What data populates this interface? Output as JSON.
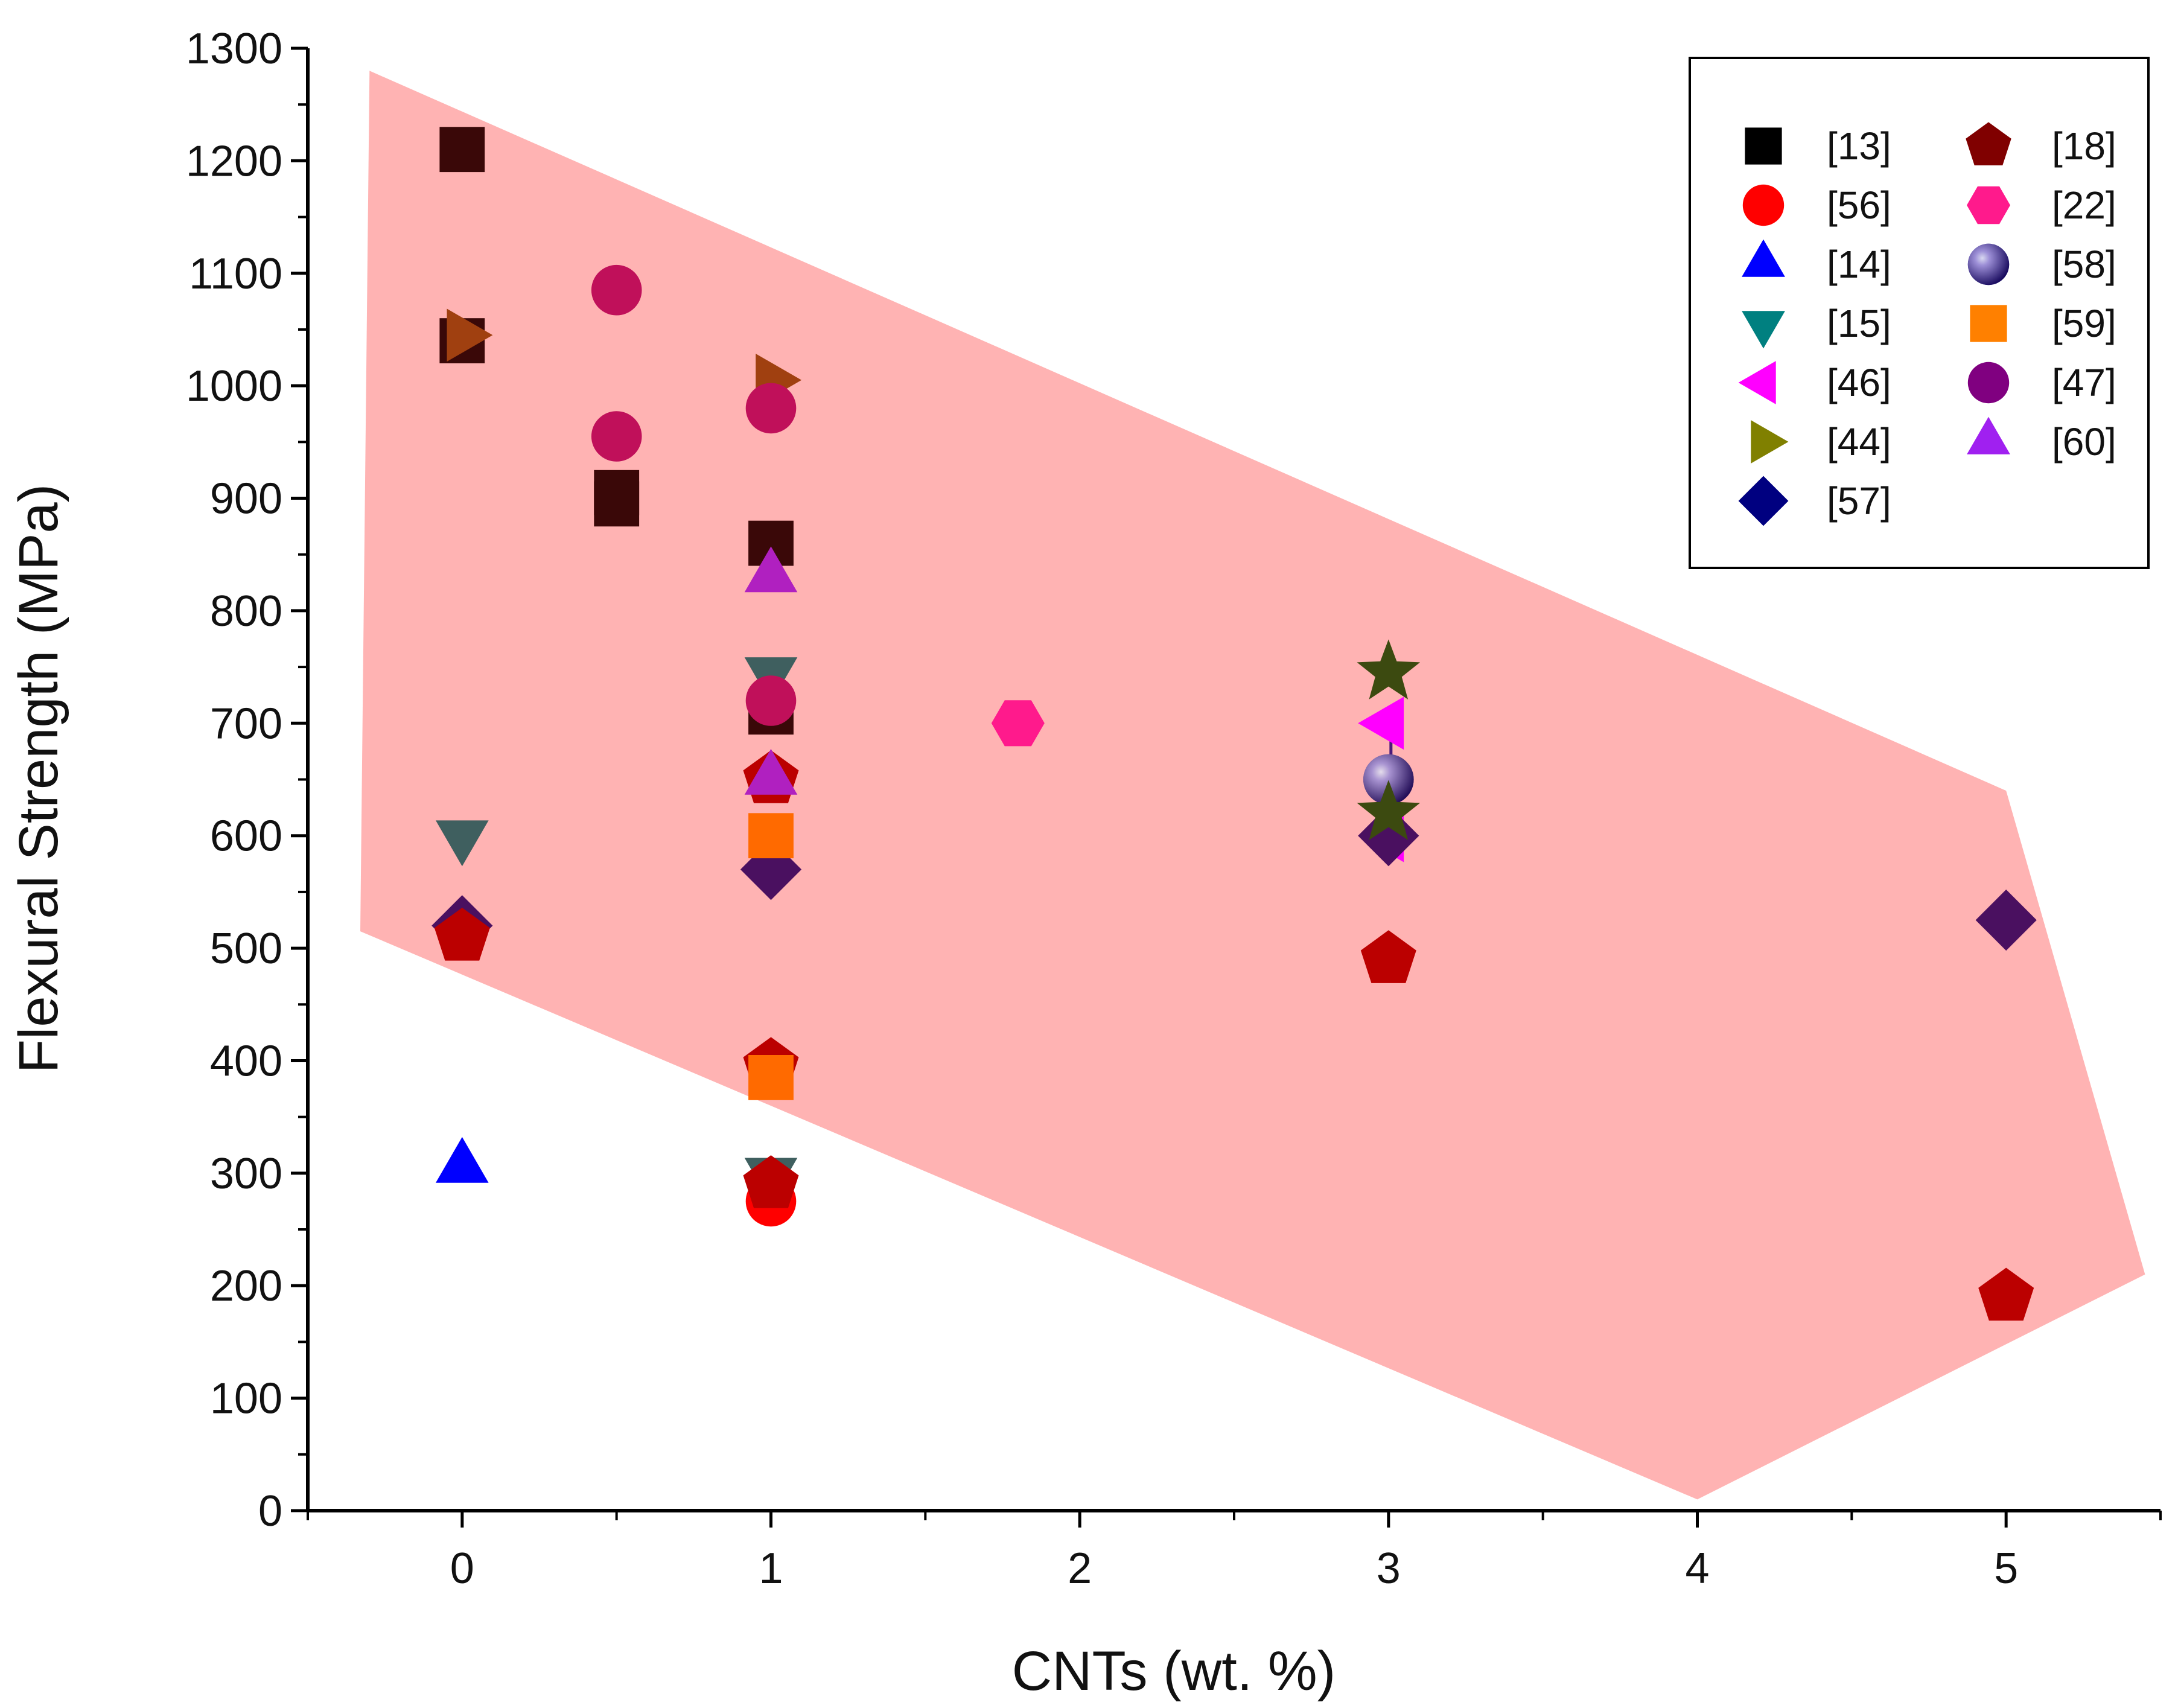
{
  "chart_data": {
    "type": "scatter",
    "title": "",
    "xlabel": "CNTs (wt. %)",
    "ylabel": "Flexural Strength (MPa)",
    "xlim": [
      -0.5,
      5.5
    ],
    "ylim": [
      0,
      1300
    ],
    "xticks": [
      0,
      1,
      2,
      3,
      4,
      5
    ],
    "xtick_labels": [
      "0",
      "1",
      "2",
      "3",
      "4",
      "5"
    ],
    "yticks": [
      0,
      100,
      200,
      300,
      400,
      500,
      600,
      700,
      800,
      900,
      1000,
      1100,
      1200,
      1300
    ],
    "ytick_labels": [
      "0",
      "100",
      "200",
      "300",
      "400",
      "500",
      "600",
      "700",
      "800",
      "900",
      "1000",
      "1100",
      "1200",
      "1300"
    ],
    "legend_position": "top-right",
    "shaded_region": {
      "color": "#ffb3b3",
      "vertices": [
        [
          -0.3,
          1280
        ],
        [
          5.0,
          640
        ],
        [
          5.45,
          210
        ],
        [
          4.0,
          10
        ],
        [
          -0.33,
          515
        ]
      ]
    },
    "series": [
      {
        "name": "[13]",
        "marker": "square",
        "color": "#3a0808",
        "points": [
          [
            0,
            1210
          ],
          [
            0,
            1040
          ],
          [
            0.5,
            905
          ],
          [
            0.5,
            895
          ],
          [
            1,
            860
          ],
          [
            1,
            710
          ]
        ]
      },
      {
        "name": "[56]",
        "marker": "circle",
        "color": "#ff0000",
        "points": [
          [
            1,
            275
          ]
        ]
      },
      {
        "name": "[14]",
        "marker": "triangle-up",
        "color": "#0000ff",
        "points": [
          [
            0,
            305
          ]
        ]
      },
      {
        "name": "[15]",
        "marker": "triangle-down",
        "color": "#3f5f5f",
        "points": [
          [
            0,
            600
          ],
          [
            1,
            745
          ],
          [
            1,
            300
          ]
        ]
      },
      {
        "name": "[46]",
        "marker": "triangle-left",
        "color": "#ff00ff",
        "points": [
          [
            3,
            700
          ],
          [
            3,
            600
          ]
        ]
      },
      {
        "name": "[44]",
        "marker": "triangle-right",
        "color": "#a04010",
        "points": [
          [
            0,
            1045
          ],
          [
            1,
            1005
          ]
        ]
      },
      {
        "name": "[57]",
        "marker": "diamond",
        "color": "#4a1060",
        "points": [
          [
            0,
            520
          ],
          [
            1,
            570
          ],
          [
            3,
            600
          ],
          [
            5,
            525
          ]
        ]
      },
      {
        "name": "[18]",
        "marker": "pentagon",
        "color": "#bb0000",
        "points": [
          [
            0,
            510
          ],
          [
            1,
            650
          ],
          [
            1,
            395
          ],
          [
            1,
            290
          ],
          [
            3,
            490
          ],
          [
            5,
            190
          ]
        ]
      },
      {
        "name": "[22]",
        "marker": "hexagon",
        "color": "#ff1a8c",
        "points": [
          [
            1.8,
            700
          ]
        ]
      },
      {
        "name": "[58]",
        "marker": "sphere",
        "color": "#4b1a7a",
        "points": [
          [
            3,
            650
          ]
        ]
      },
      {
        "name": "[59]",
        "marker": "square",
        "color": "#ff6a00",
        "points": [
          [
            1,
            600
          ],
          [
            1,
            385
          ]
        ]
      },
      {
        "name": "[47]",
        "marker": "circle",
        "color": "#c0105a",
        "points": [
          [
            0.5,
            1085
          ],
          [
            0.5,
            955
          ],
          [
            1,
            980
          ],
          [
            1,
            720
          ]
        ]
      },
      {
        "name": "[60]",
        "marker": "triangle-up",
        "color": "#b020c0",
        "points": [
          [
            1,
            830
          ],
          [
            1,
            650
          ]
        ]
      },
      {
        "name": "",
        "marker": "star",
        "color": "#3c4a10",
        "points": [
          [
            3,
            745
          ],
          [
            3,
            620
          ]
        ]
      }
    ],
    "legend": [
      {
        "label": "[13]",
        "marker": "square",
        "color": "#000000"
      },
      {
        "label": "[56]",
        "marker": "circle",
        "color": "#ff0000"
      },
      {
        "label": "[14]",
        "marker": "triangle-up",
        "color": "#0000ff"
      },
      {
        "label": "[15]",
        "marker": "triangle-down",
        "color": "#008080"
      },
      {
        "label": "[46]",
        "marker": "triangle-left",
        "color": "#ff00ff"
      },
      {
        "label": "[44]",
        "marker": "triangle-right",
        "color": "#808000"
      },
      {
        "label": "[57]",
        "marker": "diamond",
        "color": "#000080"
      },
      {
        "label": "[18]",
        "marker": "pentagon",
        "color": "#800000"
      },
      {
        "label": "[22]",
        "marker": "hexagon",
        "color": "#ff1a8c"
      },
      {
        "label": "[58]",
        "marker": "sphere",
        "color": "#0000a0"
      },
      {
        "label": "[59]",
        "marker": "square",
        "color": "#ff8000"
      },
      {
        "label": "[47]",
        "marker": "circle",
        "color": "#800080"
      },
      {
        "label": "[60]",
        "marker": "triangle-up",
        "color": "#a020f0"
      }
    ]
  }
}
